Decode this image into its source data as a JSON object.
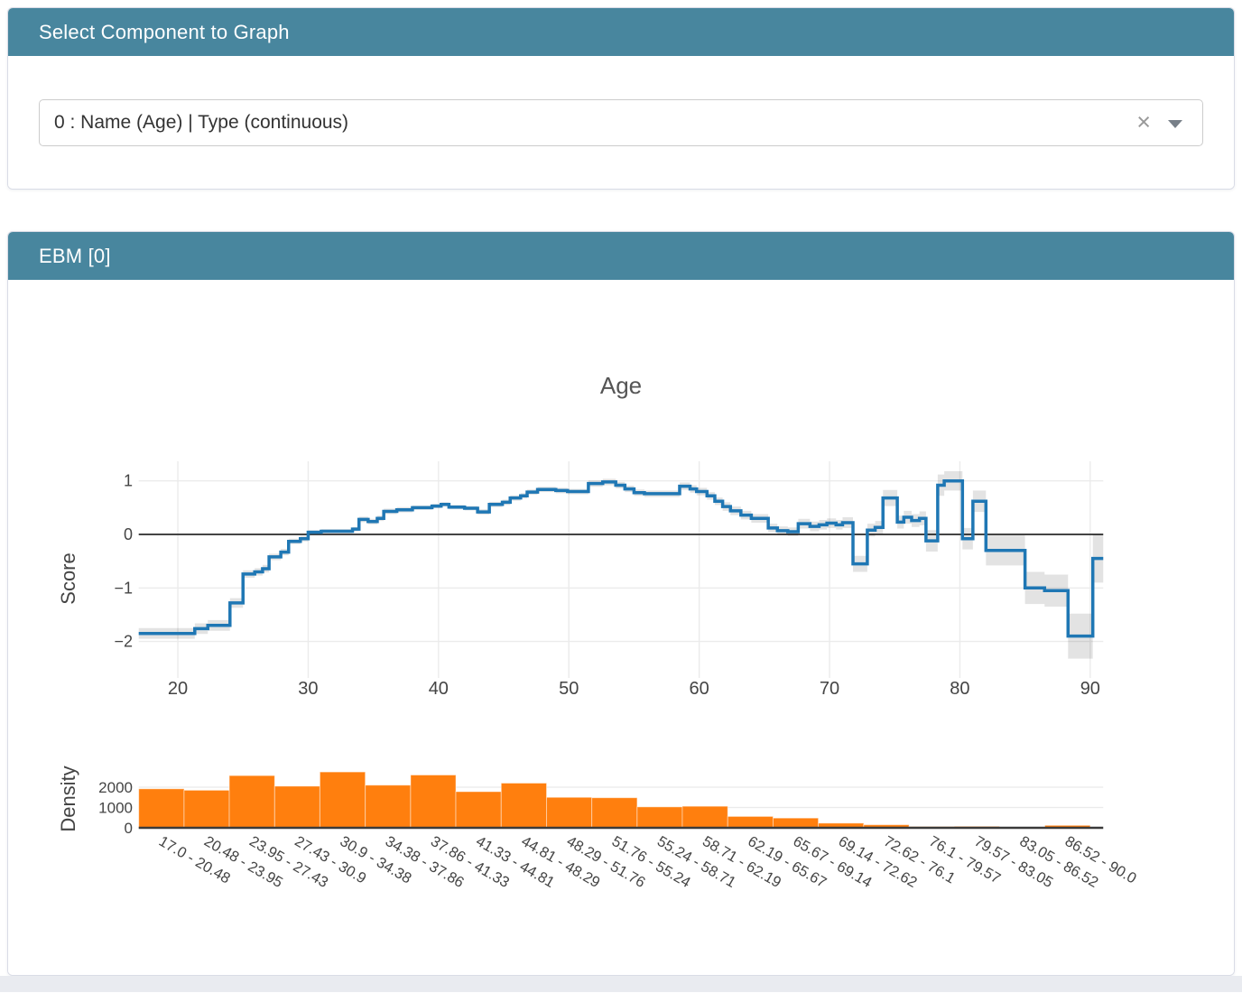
{
  "panels": {
    "selector": {
      "title": "Select Component to Graph",
      "dropdown": {
        "value": "0 : Name (Age) | Type (continuous)",
        "clear_icon": "×",
        "caret_icon": "chevron-down"
      }
    },
    "ebm": {
      "title": "EBM [0]"
    }
  },
  "colors": {
    "header_teal": "#48869e",
    "line_blue": "#1f77b4",
    "bar_orange": "#ff7f0e",
    "error_band": "rgba(0,0,0,0.11)",
    "gridline": "#ebebeb",
    "axis_dark": "#444444",
    "tick_text": "#444444",
    "title_text": "#555555"
  },
  "chart_data": {
    "type": "line",
    "title": "Age",
    "main": {
      "type": "line",
      "shape": "step",
      "ylabel": "Score",
      "color": "#1f77b4",
      "xrange": [
        17,
        91
      ],
      "yrange": [
        -2.7,
        1.4
      ],
      "xticks": [
        20,
        30,
        40,
        50,
        60,
        70,
        80,
        90
      ],
      "yticks": [
        1,
        0,
        -1,
        -2
      ],
      "grid": true,
      "steps": [
        [
          17.0,
          -1.85,
          0.1
        ],
        [
          21.3,
          -1.76,
          0.1
        ],
        [
          22.3,
          -1.7,
          0.1
        ],
        [
          24.0,
          -1.28,
          0.09
        ],
        [
          25.0,
          -0.74,
          0.07
        ],
        [
          25.9,
          -0.7,
          0.07
        ],
        [
          26.5,
          -0.64,
          0.07
        ],
        [
          27.0,
          -0.42,
          0.06
        ],
        [
          27.9,
          -0.33,
          0.06
        ],
        [
          28.5,
          -0.13,
          0.05
        ],
        [
          29.4,
          -0.08,
          0.05
        ],
        [
          30.0,
          0.04,
          0.04
        ],
        [
          31.0,
          0.06,
          0.04
        ],
        [
          33.4,
          0.1,
          0.04
        ],
        [
          33.9,
          0.28,
          0.05
        ],
        [
          34.6,
          0.24,
          0.05
        ],
        [
          35.3,
          0.3,
          0.05
        ],
        [
          35.8,
          0.43,
          0.05
        ],
        [
          36.8,
          0.46,
          0.05
        ],
        [
          38.0,
          0.5,
          0.04
        ],
        [
          39.5,
          0.53,
          0.04
        ],
        [
          40.2,
          0.56,
          0.04
        ],
        [
          40.8,
          0.51,
          0.04
        ],
        [
          42.0,
          0.49,
          0.04
        ],
        [
          43.0,
          0.42,
          0.05
        ],
        [
          43.9,
          0.56,
          0.05
        ],
        [
          44.9,
          0.6,
          0.05
        ],
        [
          45.5,
          0.68,
          0.05
        ],
        [
          46.3,
          0.72,
          0.05
        ],
        [
          46.8,
          0.79,
          0.05
        ],
        [
          47.6,
          0.84,
          0.05
        ],
        [
          49.0,
          0.82,
          0.05
        ],
        [
          49.9,
          0.8,
          0.05
        ],
        [
          51.5,
          0.95,
          0.06
        ],
        [
          52.6,
          0.98,
          0.06
        ],
        [
          53.6,
          0.92,
          0.06
        ],
        [
          54.3,
          0.85,
          0.06
        ],
        [
          55.0,
          0.78,
          0.06
        ],
        [
          55.8,
          0.76,
          0.06
        ],
        [
          58.5,
          0.9,
          0.07
        ],
        [
          59.3,
          0.85,
          0.07
        ],
        [
          59.8,
          0.8,
          0.07
        ],
        [
          60.6,
          0.72,
          0.07
        ],
        [
          61.2,
          0.62,
          0.07
        ],
        [
          61.8,
          0.52,
          0.08
        ],
        [
          62.4,
          0.44,
          0.08
        ],
        [
          63.2,
          0.36,
          0.08
        ],
        [
          64.0,
          0.3,
          0.08
        ],
        [
          65.3,
          0.12,
          0.08
        ],
        [
          66.0,
          0.07,
          0.08
        ],
        [
          66.8,
          0.05,
          0.08
        ],
        [
          67.6,
          0.2,
          0.09
        ],
        [
          68.5,
          0.15,
          0.09
        ],
        [
          69.2,
          0.18,
          0.09
        ],
        [
          69.8,
          0.21,
          0.09
        ],
        [
          70.5,
          0.18,
          0.09
        ],
        [
          71.0,
          0.22,
          0.1
        ],
        [
          71.8,
          -0.55,
          0.15
        ],
        [
          72.9,
          0.08,
          0.12
        ],
        [
          73.5,
          0.13,
          0.12
        ],
        [
          74.1,
          0.68,
          0.15
        ],
        [
          75.2,
          0.23,
          0.12
        ],
        [
          75.7,
          0.32,
          0.12
        ],
        [
          76.3,
          0.26,
          0.12
        ],
        [
          76.9,
          0.3,
          0.13
        ],
        [
          77.4,
          -0.12,
          0.2
        ],
        [
          78.3,
          0.92,
          0.2
        ],
        [
          78.8,
          1.0,
          0.18
        ],
        [
          80.2,
          -0.08,
          0.2
        ],
        [
          81.0,
          0.62,
          0.2
        ],
        [
          82.0,
          -0.3,
          0.28
        ],
        [
          85.0,
          -1.0,
          0.3
        ],
        [
          86.5,
          -1.05,
          0.3
        ],
        [
          88.3,
          -1.9,
          0.42
        ],
        [
          90.2,
          -0.45,
          0.45
        ],
        [
          91.0,
          -0.45,
          0.45
        ]
      ]
    },
    "density": {
      "type": "bar",
      "ylabel": "Density",
      "color": "#ff7f0e",
      "yticks": [
        0,
        1000,
        2000
      ],
      "grid": true,
      "bin_edges": [
        17.0,
        20.48,
        23.95,
        27.43,
        30.9,
        34.38,
        37.86,
        41.33,
        44.81,
        48.29,
        51.76,
        55.24,
        58.71,
        62.19,
        65.67,
        69.14,
        72.62,
        76.1,
        79.57,
        83.05,
        86.52,
        90.0
      ],
      "categories": [
        "17.0 - 20.48",
        "20.48 - 23.95",
        "23.95 - 27.43",
        "27.43 - 30.9",
        "30.9 - 34.38",
        "34.38 - 37.86",
        "37.86 - 41.33",
        "41.33 - 44.81",
        "44.81 - 48.29",
        "48.29 - 51.76",
        "51.76 - 55.24",
        "55.24 - 58.71",
        "58.71 - 62.19",
        "62.19 - 65.67",
        "65.67 - 69.14",
        "69.14 - 72.62",
        "72.62 - 76.1",
        "76.1 - 79.57",
        "79.57 - 83.05",
        "83.05 - 86.52",
        "86.52 - 90.0"
      ],
      "values": [
        1920,
        1850,
        2570,
        2050,
        2750,
        2100,
        2600,
        1780,
        2200,
        1500,
        1480,
        1030,
        1060,
        560,
        480,
        230,
        150,
        60,
        70,
        40,
        120
      ]
    }
  }
}
